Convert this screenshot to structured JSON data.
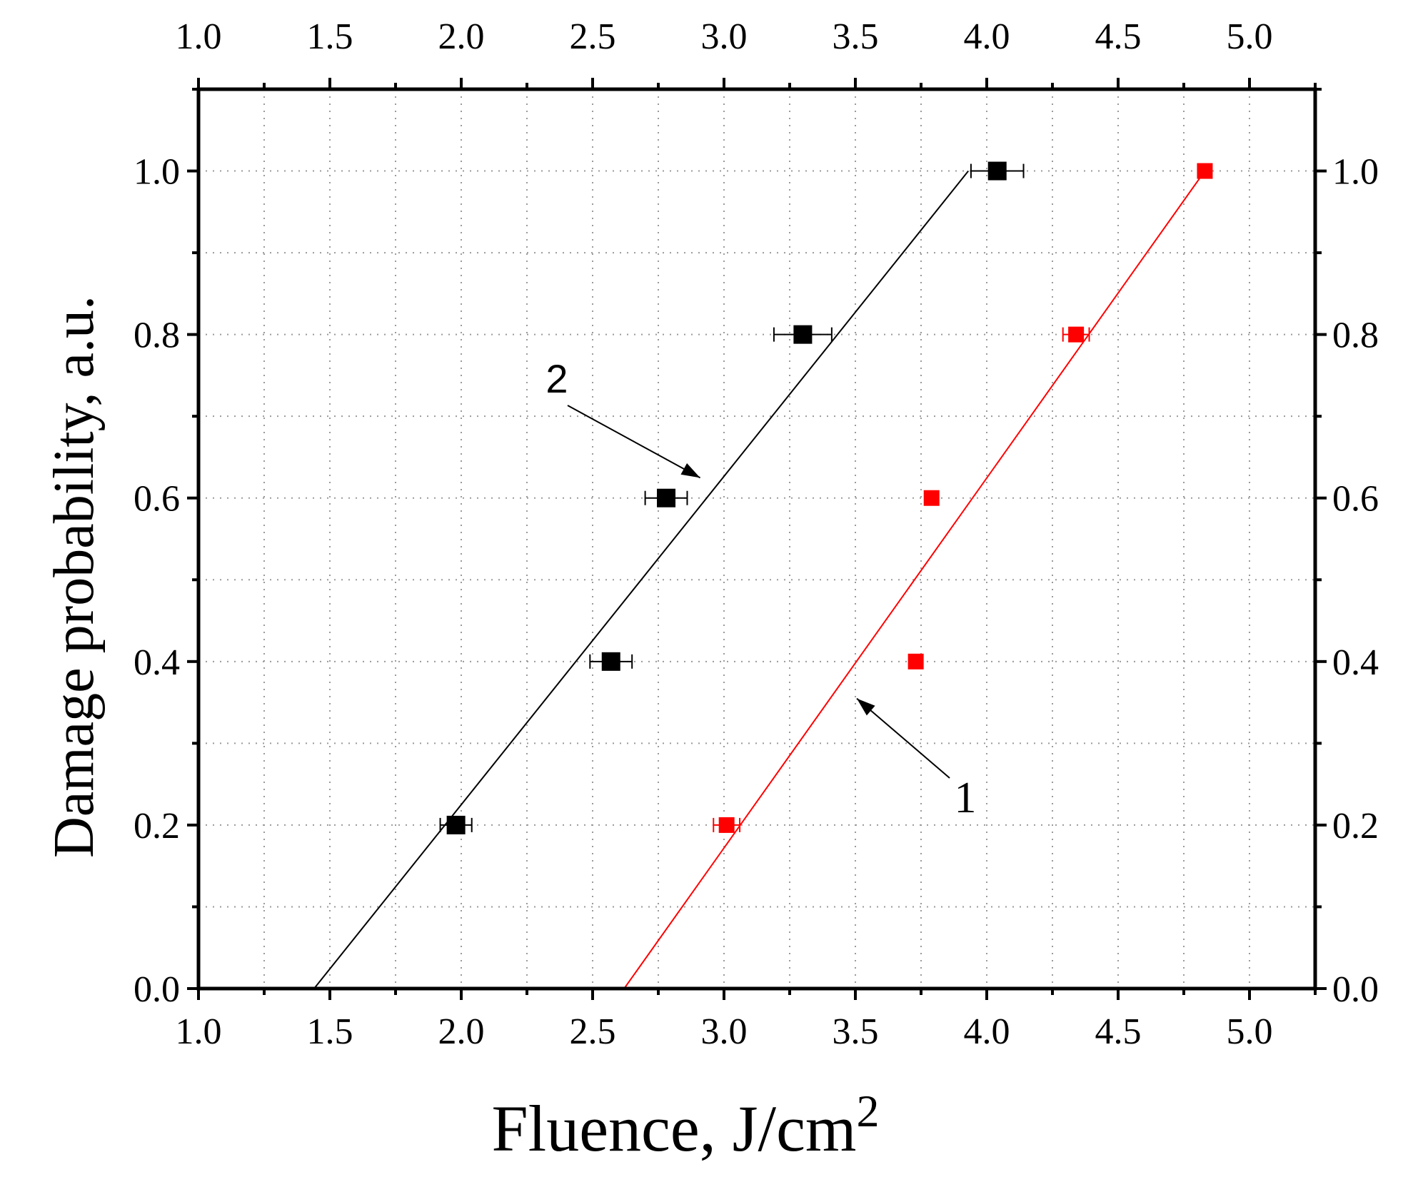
{
  "chart_data": {
    "type": "scatter",
    "title": "",
    "xlabel": "Fluence, J/cm",
    "xlabel_sup": "2",
    "ylabel": "Damage probability, a.u.",
    "xlim": [
      1.0,
      5.25
    ],
    "ylim": [
      0.0,
      1.1
    ],
    "x_ticks": [
      1.0,
      1.5,
      2.0,
      2.5,
      3.0,
      3.5,
      4.0,
      4.5,
      5.0
    ],
    "x_tick_labels": [
      "1.0",
      "1.5",
      "2.0",
      "2.5",
      "3.0",
      "3.5",
      "4.0",
      "4.5",
      "5.0"
    ],
    "y_ticks": [
      0.0,
      0.2,
      0.4,
      0.6,
      0.8,
      1.0
    ],
    "y_tick_labels": [
      "0.0",
      "0.2",
      "0.4",
      "0.6",
      "0.8",
      "1.0"
    ],
    "grid": true,
    "legend": "none",
    "series": [
      {
        "color": "#000000",
        "points": [
          {
            "x": 1.98,
            "y": 0.2,
            "xerr": 0.06
          },
          {
            "x": 2.57,
            "y": 0.4,
            "xerr": 0.08
          },
          {
            "x": 2.78,
            "y": 0.6,
            "xerr": 0.08
          },
          {
            "x": 3.3,
            "y": 0.8,
            "xerr": 0.11
          },
          {
            "x": 4.04,
            "y": 1.0,
            "xerr": 0.1
          }
        ],
        "fit": [
          [
            1.44,
            0.0
          ],
          [
            3.93,
            1.0
          ]
        ]
      },
      {
        "color": "#ff0000",
        "points": [
          {
            "x": 3.01,
            "y": 0.2,
            "xerr": 0.05
          },
          {
            "x": 3.73,
            "y": 0.4,
            "xerr": 0
          },
          {
            "x": 3.79,
            "y": 0.6,
            "xerr": 0
          },
          {
            "x": 4.34,
            "y": 0.8,
            "xerr": 0.05
          },
          {
            "x": 4.83,
            "y": 1.0,
            "xerr": 0
          }
        ],
        "fit": [
          [
            2.62,
            0.0
          ],
          [
            4.83,
            1.0
          ]
        ]
      }
    ],
    "annotations": [
      {
        "text": "1",
        "target": [
          3.5,
          0.36
        ]
      },
      {
        "text": "2",
        "target": [
          2.95,
          0.63
        ]
      }
    ]
  }
}
